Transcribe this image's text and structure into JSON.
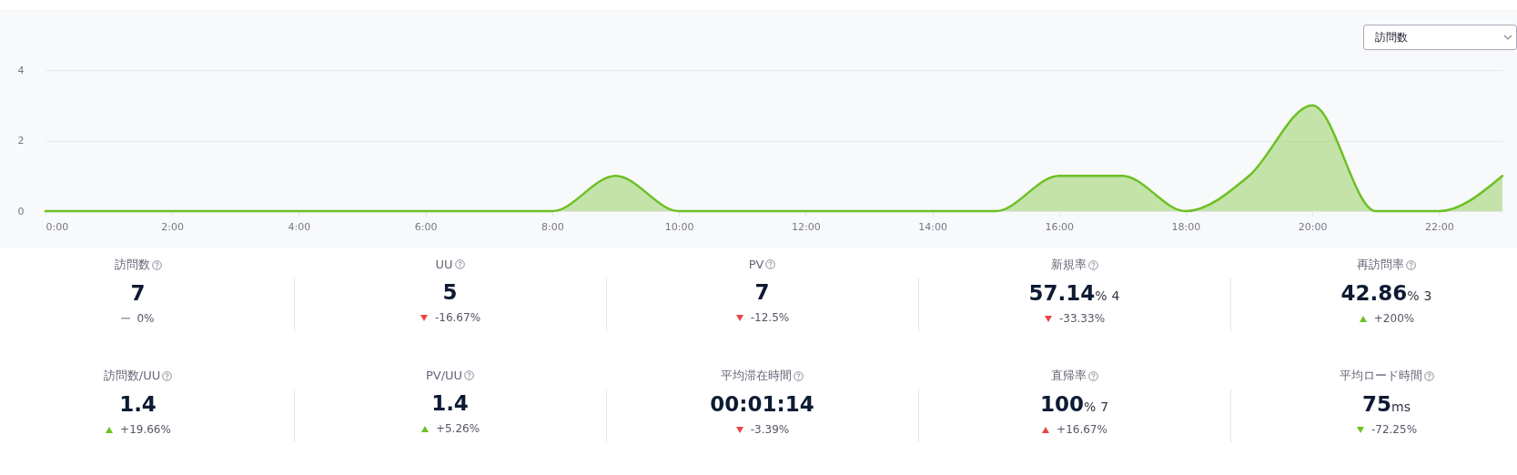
{
  "chart_data": [
    {
      "type": "area",
      "annotations": [
        "訪問数"
      ],
      "x": [
        0,
        1,
        2,
        3,
        4,
        5,
        6,
        7,
        8,
        9,
        10,
        11,
        12,
        13,
        14,
        15,
        16,
        17,
        18,
        19,
        20,
        21,
        22,
        23
      ],
      "series": [
        {
          "color": "#6cc024",
          "values": [
            0,
            0,
            0,
            0,
            0,
            0,
            0,
            0,
            0,
            1,
            0,
            0,
            0,
            0,
            0,
            0,
            1,
            1,
            0,
            1,
            3,
            0,
            0,
            1
          ]
        }
      ],
      "xlim": [
        0,
        23
      ],
      "xticks": [
        {
          "value": 0,
          "label": "0:00"
        },
        {
          "value": 2,
          "label": "2:00"
        },
        {
          "value": 4,
          "label": "4:00"
        },
        {
          "value": 6,
          "label": "6:00"
        },
        {
          "value": 8,
          "label": "8:00"
        },
        {
          "value": 10,
          "label": "10:00"
        },
        {
          "value": 12,
          "label": "12:00"
        },
        {
          "value": 14,
          "label": "14:00"
        },
        {
          "value": 16,
          "label": "16:00"
        },
        {
          "value": 18,
          "label": "18:00"
        },
        {
          "value": 20,
          "label": "20:00"
        },
        {
          "value": 22,
          "label": "22:00"
        }
      ],
      "ylim": [
        0,
        4
      ],
      "yticks": [
        0,
        2,
        4
      ],
      "grid": "y"
    },
    {
      "type": "other",
      "title": "訪問数",
      "annotations": [
        "7",
        "0%"
      ]
    },
    {
      "type": "other",
      "title": "UU",
      "annotations": [
        "5",
        "-16.67%"
      ]
    },
    {
      "type": "other",
      "title": "PV",
      "annotations": [
        "7",
        "-12.5%"
      ]
    },
    {
      "type": "other",
      "title": "新規率",
      "annotations": [
        "57.14",
        "%",
        "4",
        "-33.33%"
      ]
    },
    {
      "type": "other",
      "title": "再訪問率",
      "annotations": [
        "42.86",
        "%",
        "3",
        "+200%"
      ]
    },
    {
      "type": "other",
      "title": "訪問数/UU",
      "annotations": [
        "1.4",
        "+19.66%"
      ]
    },
    {
      "type": "other",
      "title": "PV/UU",
      "annotations": [
        "1.4",
        "+5.26%"
      ]
    },
    {
      "type": "other",
      "title": "平均滞在時間",
      "annotations": [
        "00:01:14",
        "-3.39%"
      ]
    },
    {
      "type": "other",
      "title": "直帰率",
      "annotations": [
        "100",
        "%",
        "7",
        "+16.67%"
      ]
    },
    {
      "type": "other",
      "title": "平均ロード時間",
      "annotations": [
        "75",
        "ms",
        "-72.25%"
      ]
    }
  ]
}
